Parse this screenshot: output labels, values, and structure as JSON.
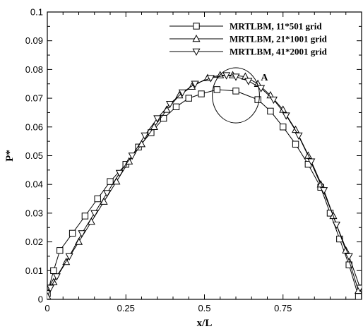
{
  "chart_data": {
    "type": "line",
    "title": "",
    "xlabel": "x/L",
    "ylabel": "P*",
    "xlim": [
      0,
      1
    ],
    "ylim": [
      0,
      0.1
    ],
    "grid": false,
    "legend_position": "top-right",
    "x_ticks": [
      {
        "value": 0,
        "label": "0"
      },
      {
        "value": 0.25,
        "label": "0.25"
      },
      {
        "value": 0.5,
        "label": "0.5"
      },
      {
        "value": 0.75,
        "label": "0.75"
      }
    ],
    "y_ticks": [
      {
        "value": 0,
        "label": "0"
      },
      {
        "value": 0.01,
        "label": "0.01"
      },
      {
        "value": 0.02,
        "label": "0.02"
      },
      {
        "value": 0.03,
        "label": "0.03"
      },
      {
        "value": 0.04,
        "label": "0.04"
      },
      {
        "value": 0.05,
        "label": "0.05"
      },
      {
        "value": 0.06,
        "label": "0.06"
      },
      {
        "value": 0.07,
        "label": "0.07"
      },
      {
        "value": 0.08,
        "label": "0.08"
      },
      {
        "value": 0.09,
        "label": "0.09"
      },
      {
        "value": 0.1,
        "label": "0.1"
      }
    ],
    "series": [
      {
        "name": "MRTLBM, 11*501 grid",
        "marker": "square",
        "x": [
          0.0,
          0.02,
          0.04,
          0.08,
          0.12,
          0.16,
          0.2,
          0.25,
          0.29,
          0.33,
          0.37,
          0.41,
          0.45,
          0.49,
          0.54,
          0.6,
          0.67,
          0.71,
          0.75,
          0.79,
          0.83,
          0.87,
          0.9,
          0.93,
          0.96,
          0.99
        ],
        "y": [
          0.002,
          0.01,
          0.017,
          0.023,
          0.029,
          0.035,
          0.041,
          0.047,
          0.053,
          0.058,
          0.063,
          0.067,
          0.07,
          0.0715,
          0.073,
          0.0725,
          0.0695,
          0.0655,
          0.06,
          0.054,
          0.047,
          0.039,
          0.03,
          0.021,
          0.012,
          0.001
        ]
      },
      {
        "name": "MRTLBM, 21*1001 grid",
        "marker": "triangle-up",
        "x": [
          0.0,
          0.02,
          0.06,
          0.1,
          0.14,
          0.18,
          0.22,
          0.26,
          0.3,
          0.34,
          0.38,
          0.42,
          0.46,
          0.51,
          0.55,
          0.59,
          0.63,
          0.67,
          0.71,
          0.75,
          0.79,
          0.83,
          0.87,
          0.91,
          0.95,
          0.99
        ],
        "y": [
          0.001,
          0.006,
          0.013,
          0.02,
          0.027,
          0.034,
          0.041,
          0.048,
          0.054,
          0.06,
          0.066,
          0.071,
          0.074,
          0.077,
          0.078,
          0.078,
          0.0775,
          0.075,
          0.071,
          0.066,
          0.059,
          0.05,
          0.04,
          0.029,
          0.017,
          0.003
        ]
      },
      {
        "name": "MRTLBM, 41*2001 grid",
        "marker": "triangle-down",
        "x": [
          0.01,
          0.03,
          0.07,
          0.11,
          0.15,
          0.19,
          0.23,
          0.27,
          0.31,
          0.35,
          0.39,
          0.43,
          0.47,
          0.52,
          0.57,
          0.6,
          0.64,
          0.68,
          0.72,
          0.76,
          0.8,
          0.84,
          0.88,
          0.92,
          0.96,
          0.995
        ],
        "y": [
          0.004,
          0.008,
          0.015,
          0.023,
          0.03,
          0.037,
          0.044,
          0.05,
          0.057,
          0.063,
          0.068,
          0.072,
          0.075,
          0.077,
          0.078,
          0.0775,
          0.076,
          0.0735,
          0.0695,
          0.064,
          0.057,
          0.048,
          0.038,
          0.026,
          0.015,
          0.004
        ]
      }
    ],
    "annotations": [
      {
        "text": "A",
        "kind": "circle",
        "cx": 0.6,
        "cy": 0.071,
        "rx": 0.075,
        "ry": 0.0096
      }
    ]
  }
}
